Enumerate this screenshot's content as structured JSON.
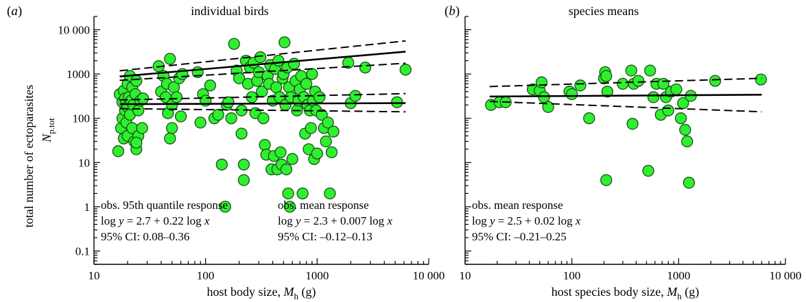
{
  "figure": {
    "point_color": "#2ef02e",
    "point_stroke": "#1a4d1a",
    "ylabel_main": "total number of ectoparasites",
    "ylabel_symbol": "N",
    "ylabel_sub": "p.tot"
  },
  "chart_data": [
    {
      "type": "scatter",
      "letter": "(a)",
      "title": "individual birds",
      "xlabel_text": "host body size, ",
      "xlabel_symbol": "M",
      "xlabel_sub": "h",
      "xlabel_unit": " (g)",
      "xscale": "log",
      "yscale": "log",
      "xlim": [
        10,
        10000
      ],
      "ylim": [
        0.05,
        20000
      ],
      "xticks": [
        10,
        100,
        1000,
        10000
      ],
      "xtick_labels": [
        "10",
        "100",
        "1000",
        "10 000"
      ],
      "yticks": [
        0.1,
        1,
        10,
        100,
        1000,
        10000
      ],
      "ytick_labels": [
        "0.1",
        "1",
        "10",
        "100",
        "1000",
        "10 000"
      ],
      "annotations": [
        {
          "lines": [
            "obs. 95th quantile response",
            "log y = 2.7 + 0.22 log x",
            "95% CI: 0.08–0.36"
          ],
          "position": "bottom-left"
        },
        {
          "lines": [
            "obs. mean response",
            "log y = 2.3 + 0.007 log x",
            "95% CI: –0.12–0.13"
          ],
          "position": "bottom-center"
        }
      ],
      "fits": [
        {
          "label": "95th quantile",
          "x": [
            17,
            6200
          ],
          "y": [
            880,
            3200
          ],
          "ci_upper": [
            1180,
            5600
          ],
          "ci_lower": [
            720,
            1750
          ]
        },
        {
          "label": "mean",
          "x": [
            17,
            6200
          ],
          "y": [
            208,
            220
          ],
          "ci_upper": [
            260,
            360
          ],
          "ci_lower": [
            165,
            140
          ]
        }
      ],
      "points": [
        [
          16.5,
          18
        ],
        [
          17,
          350
        ],
        [
          17.5,
          60
        ],
        [
          18,
          230
        ],
        [
          18,
          100
        ],
        [
          18.5,
          35
        ],
        [
          18.5,
          420
        ],
        [
          19,
          150
        ],
        [
          19,
          280
        ],
        [
          19.5,
          80
        ],
        [
          20,
          40
        ],
        [
          20,
          180
        ],
        [
          20,
          600
        ],
        [
          20.5,
          300
        ],
        [
          21,
          900
        ],
        [
          21,
          120
        ],
        [
          21.5,
          250
        ],
        [
          22,
          500
        ],
        [
          22,
          60
        ],
        [
          22.5,
          200
        ],
        [
          23,
          30
        ],
        [
          23.5,
          350
        ],
        [
          24,
          20
        ],
        [
          24,
          700
        ],
        [
          25,
          150
        ],
        [
          25,
          40
        ],
        [
          26,
          250
        ],
        [
          27,
          60
        ],
        [
          24,
          28
        ],
        [
          27.5,
          280
        ],
        [
          38,
          1500
        ],
        [
          40,
          400
        ],
        [
          42,
          900
        ],
        [
          44,
          300
        ],
        [
          45,
          600
        ],
        [
          46,
          130
        ],
        [
          48,
          35
        ],
        [
          48,
          2200
        ],
        [
          50,
          200
        ],
        [
          50,
          60
        ],
        [
          52,
          500
        ],
        [
          55,
          300
        ],
        [
          58,
          800
        ],
        [
          60,
          110
        ],
        [
          62,
          1000
        ],
        [
          85,
          1100
        ],
        [
          90,
          80
        ],
        [
          95,
          350
        ],
        [
          100,
          250
        ],
        [
          110,
          550
        ],
        [
          120,
          100
        ],
        [
          130,
          120
        ],
        [
          140,
          9
        ],
        [
          150,
          1
        ],
        [
          155,
          200
        ],
        [
          160,
          230
        ],
        [
          170,
          100
        ],
        [
          180,
          4800
        ],
        [
          190,
          1200
        ],
        [
          200,
          800
        ],
        [
          210,
          150
        ],
        [
          210,
          45
        ],
        [
          220,
          9
        ],
        [
          220,
          4
        ],
        [
          230,
          2000
        ],
        [
          240,
          600
        ],
        [
          250,
          1400
        ],
        [
          260,
          300
        ],
        [
          270,
          1800
        ],
        [
          280,
          130
        ],
        [
          290,
          700
        ],
        [
          300,
          1100
        ],
        [
          310,
          2400
        ],
        [
          320,
          400
        ],
        [
          330,
          100
        ],
        [
          340,
          25
        ],
        [
          350,
          15
        ],
        [
          360,
          900
        ],
        [
          370,
          600
        ],
        [
          380,
          1600
        ],
        [
          390,
          7
        ],
        [
          400,
          250
        ],
        [
          410,
          14
        ],
        [
          420,
          1300
        ],
        [
          430,
          500
        ],
        [
          440,
          7
        ],
        [
          450,
          2000
        ],
        [
          460,
          300
        ],
        [
          470,
          17
        ],
        [
          480,
          9
        ],
        [
          490,
          800
        ],
        [
          500,
          1000
        ],
        [
          510,
          5200
        ],
        [
          520,
          200
        ],
        [
          530,
          7
        ],
        [
          540,
          1400
        ],
        [
          550,
          2
        ],
        [
          560,
          500
        ],
        [
          570,
          1
        ],
        [
          580,
          300
        ],
        [
          600,
          12
        ],
        [
          620,
          1700
        ],
        [
          640,
          700
        ],
        [
          660,
          150
        ],
        [
          680,
          250
        ],
        [
          700,
          450
        ],
        [
          720,
          900
        ],
        [
          740,
          2
        ],
        [
          760,
          300
        ],
        [
          780,
          45
        ],
        [
          800,
          600
        ],
        [
          820,
          200
        ],
        [
          840,
          20
        ],
        [
          860,
          150
        ],
        [
          880,
          60
        ],
        [
          900,
          1000
        ],
        [
          920,
          250
        ],
        [
          940,
          12
        ],
        [
          960,
          400
        ],
        [
          980,
          150
        ],
        [
          1000,
          16
        ],
        [
          1050,
          300
        ],
        [
          1100,
          120
        ],
        [
          1150,
          60
        ],
        [
          1200,
          30
        ],
        [
          1250,
          80
        ],
        [
          1300,
          2
        ],
        [
          1350,
          17
        ],
        [
          1400,
          50
        ],
        [
          1900,
          1800
        ],
        [
          2000,
          220
        ],
        [
          2200,
          320
        ],
        [
          2700,
          1400
        ],
        [
          5200,
          230
        ],
        [
          6200,
          1250
        ]
      ]
    },
    {
      "type": "scatter",
      "letter": "(b)",
      "title": "species means",
      "xlabel_text": "host species body size, ",
      "xlabel_symbol": "M",
      "xlabel_sub": "h",
      "xlabel_unit": " (g)",
      "xscale": "log",
      "yscale": "log",
      "xlim": [
        10,
        10000
      ],
      "ylim": [
        0.05,
        20000
      ],
      "xticks": [
        10,
        100,
        1000,
        10000
      ],
      "xtick_labels": [
        "10",
        "100",
        "1000",
        "10 000"
      ],
      "yticks": [
        0.1,
        1,
        10,
        100,
        1000,
        10000
      ],
      "ytick_labels": [
        "",
        "",
        "",
        "",
        "",
        ""
      ],
      "annotations": [
        {
          "lines": [
            "obs. mean response",
            "log y = 2.5 + 0.02 log x",
            "95% CI: –0.21–0.25"
          ],
          "position": "bottom-left"
        }
      ],
      "fits": [
        {
          "label": "mean",
          "x": [
            17,
            6000
          ],
          "y": [
            310,
            340
          ],
          "ci_upper": [
            520,
            800
          ],
          "ci_lower": [
            240,
            140
          ]
        }
      ],
      "points": [
        [
          17.5,
          200
        ],
        [
          21,
          230
        ],
        [
          24,
          230
        ],
        [
          43,
          450
        ],
        [
          50,
          420
        ],
        [
          52,
          650
        ],
        [
          55,
          300
        ],
        [
          60,
          180
        ],
        [
          95,
          400
        ],
        [
          100,
          350
        ],
        [
          120,
          550
        ],
        [
          145,
          100
        ],
        [
          200,
          800
        ],
        [
          205,
          1100
        ],
        [
          210,
          900
        ],
        [
          210,
          4
        ],
        [
          215,
          400
        ],
        [
          300,
          600
        ],
        [
          360,
          1200
        ],
        [
          370,
          75
        ],
        [
          380,
          600
        ],
        [
          420,
          700
        ],
        [
          520,
          6.5
        ],
        [
          540,
          1200
        ],
        [
          580,
          300
        ],
        [
          620,
          600
        ],
        [
          680,
          120
        ],
        [
          720,
          600
        ],
        [
          760,
          300
        ],
        [
          800,
          150
        ],
        [
          850,
          400
        ],
        [
          950,
          450
        ],
        [
          1050,
          100
        ],
        [
          1100,
          220
        ],
        [
          1150,
          55
        ],
        [
          1200,
          30
        ],
        [
          1250,
          3.5
        ],
        [
          1300,
          320
        ],
        [
          2200,
          700
        ],
        [
          5900,
          750
        ]
      ]
    }
  ]
}
